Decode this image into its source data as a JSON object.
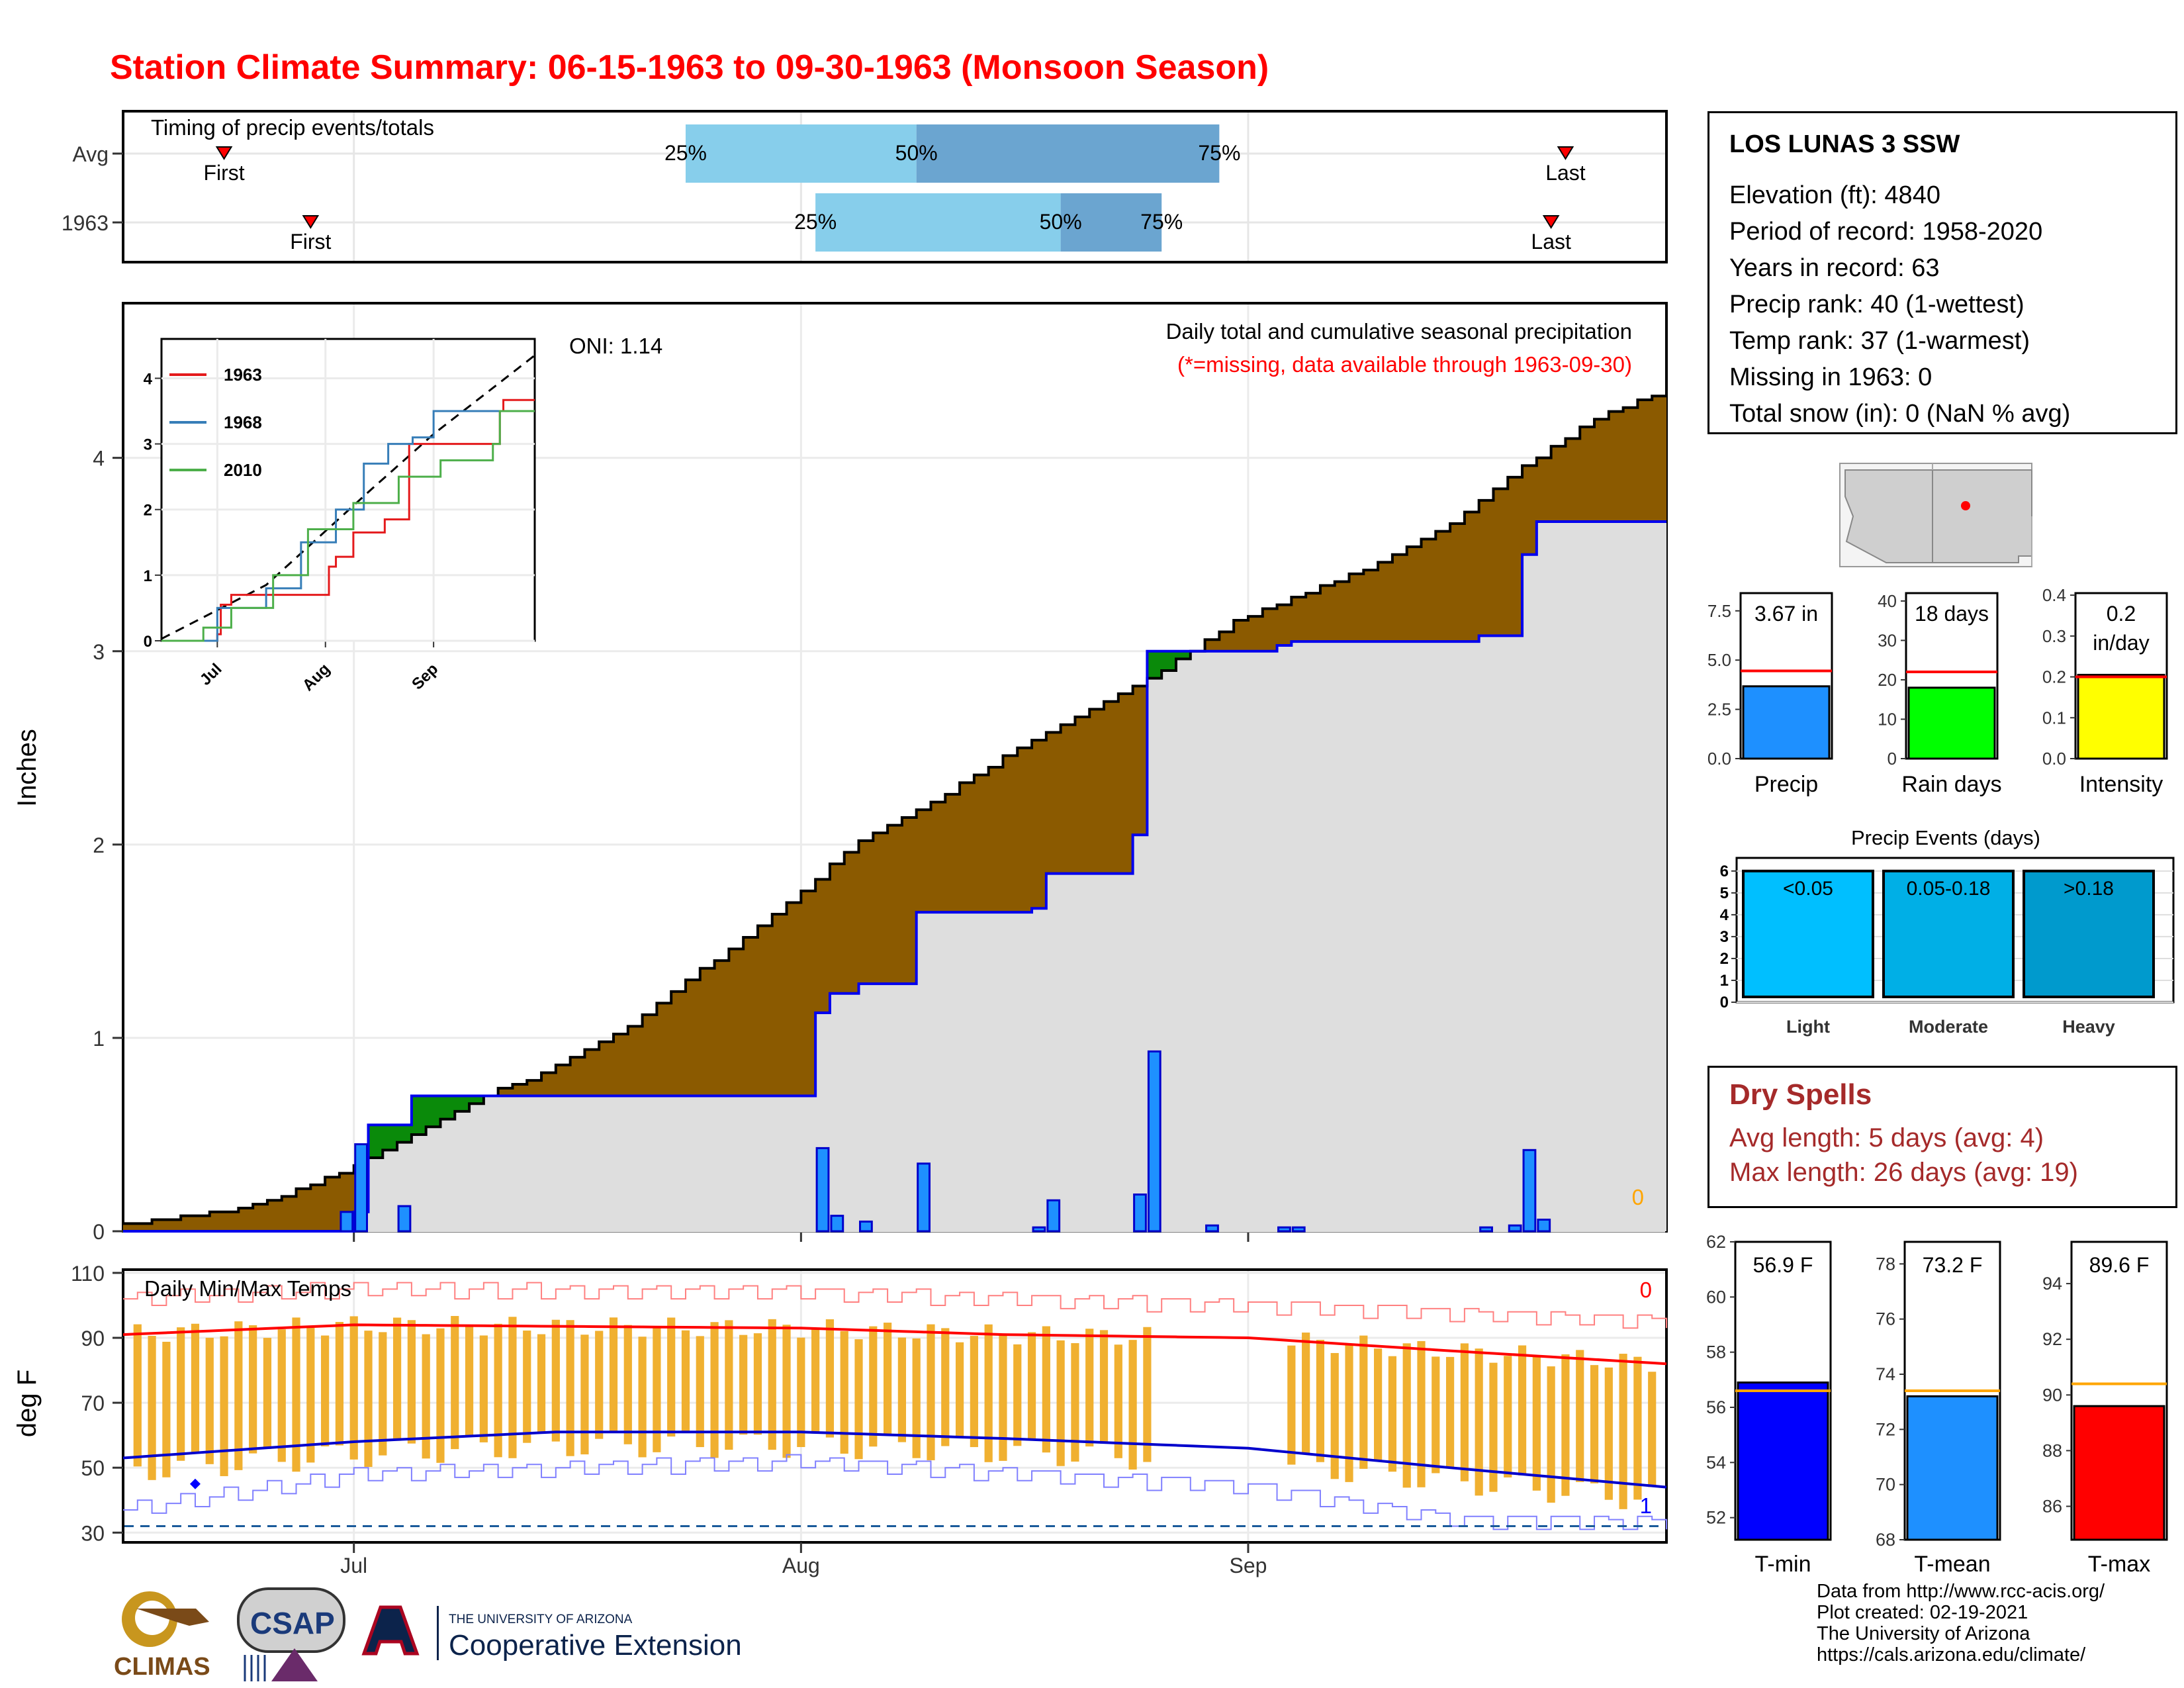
{
  "title": "Station Climate Summary: 06-15-1963 to 09-30-1963 (Monsoon Season)",
  "colors": {
    "title": "#ff0000",
    "cumulative_avg_fill": "#8b5a00",
    "cumulative_surplus_fill": "#008000",
    "daily_bars": "#1e90ff",
    "precip_line": "#0000ff",
    "tmax_avg": "#ff0000",
    "tmin_avg": "#0000cc",
    "temp_bars": "#f0b030",
    "quartile_light": "#87ceeb",
    "quartile_dark": "#6ba5d0"
  },
  "timing": {
    "label": "Timing of precip events/totals",
    "rows": [
      {
        "name": "Avg",
        "first_label": "First",
        "last_label": "Last",
        "q25": "25%",
        "q50": "50%",
        "q75": "75%"
      },
      {
        "name": "1963",
        "first_label": "First",
        "last_label": "Last",
        "q25": "25%",
        "q50": "50%",
        "q75": "75%"
      }
    ]
  },
  "main": {
    "ylabel": "Inches",
    "oni": "ONI: 1.14",
    "subtitle": "Daily total and cumulative seasonal precipitation",
    "missing_note": "(*=missing, data available through 1963-09-30)",
    "missing_count": "0",
    "y_ticks": [
      "0",
      "1",
      "2",
      "3",
      "4"
    ]
  },
  "inset": {
    "legend": [
      "1963",
      "1968",
      "2010"
    ],
    "legend_colors": [
      "#e41a1c",
      "#377eb8",
      "#4daf4a"
    ],
    "y_ticks": [
      "0",
      "1",
      "2",
      "3",
      "4"
    ],
    "x_ticks": [
      "Jul",
      "Aug",
      "Sep"
    ]
  },
  "temps": {
    "label": "Daily Min/Max Temps",
    "ylabel": "deg F",
    "y_ticks": [
      "30",
      "50",
      "70",
      "90",
      "110"
    ],
    "x_ticks": [
      "Jul",
      "Aug",
      "Sep"
    ],
    "record_high_count": "0",
    "record_low_count": "1"
  },
  "station": {
    "name": "LOS LUNAS 3 SSW",
    "lines": [
      "Elevation (ft): 4840",
      "Period of record: 1958-2020",
      "Years in record: 63",
      "Precip rank: 40 (1-wettest)",
      "Temp rank: 37 (1-warmest)",
      "Missing in 1963: 0",
      "Total snow (in): 0 (NaN % avg)"
    ]
  },
  "summary_bars": [
    {
      "label": "Precip",
      "value_text": "3.67 in",
      "value": 3.67,
      "avg": 4.45,
      "ticks": [
        "0.0",
        "2.5",
        "5.0",
        "7.5"
      ],
      "max": 8.4,
      "color": "#1e90ff"
    },
    {
      "label": "Rain days",
      "value_text": "18 days",
      "value": 18,
      "avg": 22,
      "ticks": [
        "0",
        "10",
        "20",
        "30",
        "40"
      ],
      "max": 42,
      "color": "#00ff00"
    },
    {
      "label": "Intensity",
      "value_text": "0.2 in/day",
      "value": 0.205,
      "avg": 0.2,
      "ticks": [
        "0.0",
        "0.1",
        "0.2",
        "0.3",
        "0.4"
      ],
      "max": 0.405,
      "color": "#ffff00"
    }
  ],
  "precip_events": {
    "title": "Precip Events (days)",
    "y_ticks": [
      "0",
      "1",
      "2",
      "3",
      "4",
      "5",
      "6"
    ],
    "bars": [
      {
        "label": "Light",
        "range": "<0.05",
        "color": "#00bfff"
      },
      {
        "label": "Moderate",
        "range": "0.05-0.18",
        "color": "#00afe6"
      },
      {
        "label": "Heavy",
        "range": ">0.18",
        "color": "#009acd"
      }
    ],
    "values": [
      6,
      6,
      6
    ]
  },
  "dry_spells": {
    "title": "Dry Spells",
    "avg_length": "Avg length: 5 days (avg: 4)",
    "max_length": "Max length: 26 days (avg: 19)"
  },
  "temp_bars": [
    {
      "label": "T-min",
      "value_text": "56.9 F",
      "value": 56.9,
      "avg": 56.6,
      "ymin": 51.2,
      "ymax": 62,
      "ticks": [
        "52",
        "54",
        "56",
        "58",
        "60",
        "62"
      ],
      "color": "#0000ff"
    },
    {
      "label": "T-mean",
      "value_text": "73.2 F",
      "value": 73.2,
      "avg": 73.4,
      "ymin": 68,
      "ymax": 78.8,
      "ticks": [
        "68",
        "70",
        "72",
        "74",
        "76",
        "78"
      ],
      "color": "#1e90ff"
    },
    {
      "label": "T-max",
      "value_text": "89.6 F",
      "value": 89.6,
      "avg": 90.4,
      "ymin": 84.8,
      "ymax": 95.5,
      "ticks": [
        "86",
        "88",
        "90",
        "92",
        "94"
      ],
      "color": "#ff0000"
    }
  ],
  "logos": {
    "climas": "CLIMAS",
    "csap": "CSAP",
    "ua_small": "THE UNIVERSITY OF ARIZONA",
    "ua_large": "Cooperative Extension"
  },
  "credits": [
    "Data from http://www.rcc-acis.org/",
    "Plot created: 02-19-2021",
    "The University of Arizona",
    "https://cals.arizona.edu/climate/"
  ],
  "chart_data": [
    {
      "type": "bar",
      "title": "Timing of precip events/totals",
      "categories": [
        "Avg",
        "1963"
      ],
      "series": [
        {
          "name": "First",
          "values": [
            "06-22",
            "06-28"
          ]
        },
        {
          "name": "25%",
          "values": [
            "07-24",
            "08-02"
          ]
        },
        {
          "name": "50%",
          "values": [
            "08-09",
            "08-19"
          ]
        },
        {
          "name": "75%",
          "values": [
            "08-30",
            "08-26"
          ]
        },
        {
          "name": "Last",
          "values": [
            "09-23",
            "09-22"
          ]
        }
      ]
    },
    {
      "type": "area",
      "title": "Daily total and cumulative seasonal precipitation",
      "ylabel": "Inches",
      "x_range": [
        "1963-06-15",
        "1963-09-30"
      ],
      "ylim": [
        0,
        4.8
      ],
      "daily_precip": [
        {
          "date": "1963-06-30",
          "value": 0.1
        },
        {
          "date": "1963-07-01",
          "value": 0.45
        },
        {
          "date": "1963-07-04",
          "value": 0.13
        },
        {
          "date": "1963-08-02",
          "value": 0.43
        },
        {
          "date": "1963-08-03",
          "value": 0.08
        },
        {
          "date": "1963-08-05",
          "value": 0.05
        },
        {
          "date": "1963-08-09",
          "value": 0.35
        },
        {
          "date": "1963-08-17",
          "value": 0.02
        },
        {
          "date": "1963-08-18",
          "value": 0.16
        },
        {
          "date": "1963-08-24",
          "value": 0.19
        },
        {
          "date": "1963-08-25",
          "value": 0.93
        },
        {
          "date": "1963-08-29",
          "value": 0.03
        },
        {
          "date": "1963-09-03",
          "value": 0.02
        },
        {
          "date": "1963-09-04",
          "value": 0.02
        },
        {
          "date": "1963-09-17",
          "value": 0.02
        },
        {
          "date": "1963-09-19",
          "value": 0.03
        },
        {
          "date": "1963-09-20",
          "value": 0.42
        },
        {
          "date": "1963-09-21",
          "value": 0.06
        }
      ],
      "cumulative_1963": [
        {
          "date": "1963-06-15",
          "value": 0
        },
        {
          "date": "1963-07-01",
          "value": 0.1
        },
        {
          "date": "1963-07-02",
          "value": 0.55
        },
        {
          "date": "1963-07-04",
          "value": 0.55
        },
        {
          "date": "1963-07-05",
          "value": 0.7
        },
        {
          "date": "1963-08-01",
          "value": 0.7
        },
        {
          "date": "1963-08-02",
          "value": 1.13
        },
        {
          "date": "1963-08-03",
          "value": 1.23
        },
        {
          "date": "1963-08-05",
          "value": 1.28
        },
        {
          "date": "1963-08-09",
          "value": 1.65
        },
        {
          "date": "1963-08-17",
          "value": 1.67
        },
        {
          "date": "1963-08-18",
          "value": 1.85
        },
        {
          "date": "1963-08-24",
          "value": 2.05
        },
        {
          "date": "1963-08-25",
          "value": 3.0
        },
        {
          "date": "1963-09-03",
          "value": 3.03
        },
        {
          "date": "1963-09-04",
          "value": 3.05
        },
        {
          "date": "1963-09-17",
          "value": 3.08
        },
        {
          "date": "1963-09-20",
          "value": 3.5
        },
        {
          "date": "1963-09-21",
          "value": 3.67
        },
        {
          "date": "1963-09-30",
          "value": 3.67
        }
      ],
      "cumulative_avg": [
        {
          "date": "1963-06-15",
          "value": 0.03
        },
        {
          "date": "1963-06-20",
          "value": 0.08
        },
        {
          "date": "1963-06-25",
          "value": 0.15
        },
        {
          "date": "1963-06-30",
          "value": 0.3
        },
        {
          "date": "1963-07-05",
          "value": 0.5
        },
        {
          "date": "1963-07-10",
          "value": 0.7
        },
        {
          "date": "1963-07-15",
          "value": 0.85
        },
        {
          "date": "1963-07-20",
          "value": 1.05
        },
        {
          "date": "1963-07-25",
          "value": 1.35
        },
        {
          "date": "1963-07-31",
          "value": 1.7
        },
        {
          "date": "1963-08-05",
          "value": 2.02
        },
        {
          "date": "1963-08-10",
          "value": 2.22
        },
        {
          "date": "1963-08-15",
          "value": 2.45
        },
        {
          "date": "1963-08-20",
          "value": 2.65
        },
        {
          "date": "1963-08-25",
          "value": 2.85
        },
        {
          "date": "1963-08-31",
          "value": 3.15
        },
        {
          "date": "1963-09-05",
          "value": 3.3
        },
        {
          "date": "1963-09-10",
          "value": 3.45
        },
        {
          "date": "1963-09-15",
          "value": 3.65
        },
        {
          "date": "1963-09-20",
          "value": 3.95
        },
        {
          "date": "1963-09-25",
          "value": 4.2
        },
        {
          "date": "1963-09-30",
          "value": 4.35
        }
      ]
    },
    {
      "type": "line",
      "title": "Daily Min/Max Temps",
      "ylabel": "deg F",
      "ylim": [
        27,
        111
      ],
      "x_range": [
        "1963-06-15",
        "1963-09-30"
      ],
      "tmax_avg": [
        {
          "date": "1963-06-15",
          "value": 91
        },
        {
          "date": "1963-07-01",
          "value": 94
        },
        {
          "date": "1963-08-01",
          "value": 93
        },
        {
          "date": "1963-08-15",
          "value": 91
        },
        {
          "date": "1963-09-01",
          "value": 90
        },
        {
          "date": "1963-09-15",
          "value": 86
        },
        {
          "date": "1963-09-30",
          "value": 82
        }
      ],
      "tmin_avg": [
        {
          "date": "1963-06-15",
          "value": 53
        },
        {
          "date": "1963-07-01",
          "value": 58
        },
        {
          "date": "1963-07-15",
          "value": 61
        },
        {
          "date": "1963-08-01",
          "value": 61
        },
        {
          "date": "1963-08-15",
          "value": 59
        },
        {
          "date": "1963-09-01",
          "value": 56
        },
        {
          "date": "1963-09-15",
          "value": 50
        },
        {
          "date": "1963-09-30",
          "value": 44
        }
      ],
      "record_high": [
        {
          "date": "1963-06-15",
          "value": 102
        },
        {
          "date": "1963-07-01",
          "value": 105
        },
        {
          "date": "1963-08-01",
          "value": 104
        },
        {
          "date": "1963-09-01",
          "value": 100
        },
        {
          "date": "1963-09-30",
          "value": 95
        }
      ],
      "record_low": [
        {
          "date": "1963-06-15",
          "value": 37
        },
        {
          "date": "1963-07-01",
          "value": 48
        },
        {
          "date": "1963-08-01",
          "value": 52
        },
        {
          "date": "1963-09-01",
          "value": 44
        },
        {
          "date": "1963-09-15",
          "value": 34
        },
        {
          "date": "1963-09-30",
          "value": 33
        }
      ]
    },
    {
      "type": "line",
      "title": "Inset cumulative precipitation",
      "x_range": [
        "1963-06-15",
        "1963-09-30"
      ],
      "ylim": [
        0,
        4.6
      ],
      "series": [
        {
          "name": "1963",
          "values": [
            [
              0,
              0
            ],
            [
              16,
              0.1
            ],
            [
              17,
              0.55
            ],
            [
              20,
              0.7
            ],
            [
              48,
              1.13
            ],
            [
              50,
              1.28
            ],
            [
              55,
              1.65
            ],
            [
              64,
              1.85
            ],
            [
              71,
              3.0
            ],
            [
              97,
              3.5
            ],
            [
              98,
              3.67
            ],
            [
              107,
              3.67
            ]
          ]
        },
        {
          "name": "1968",
          "values": [
            [
              0,
              0
            ],
            [
              16,
              0.5
            ],
            [
              30,
              0.8
            ],
            [
              40,
              1.5
            ],
            [
              50,
              2.0
            ],
            [
              58,
              2.7
            ],
            [
              65,
              3.0
            ],
            [
              72,
              3.1
            ],
            [
              78,
              3.5
            ],
            [
              107,
              3.5
            ]
          ]
        },
        {
          "name": "2010",
          "values": [
            [
              0,
              0
            ],
            [
              12,
              0.2
            ],
            [
              20,
              0.5
            ],
            [
              32,
              1.0
            ],
            [
              42,
              1.7
            ],
            [
              55,
              2.1
            ],
            [
              68,
              2.5
            ],
            [
              80,
              2.75
            ],
            [
              95,
              3.0
            ],
            [
              97,
              3.5
            ],
            [
              107,
              3.5
            ]
          ]
        }
      ],
      "average": [
        [
          0,
          0.03
        ],
        [
          30,
          0.85
        ],
        [
          60,
          2.3
        ],
        [
          78,
          3.15
        ],
        [
          107,
          4.35
        ]
      ]
    }
  ]
}
